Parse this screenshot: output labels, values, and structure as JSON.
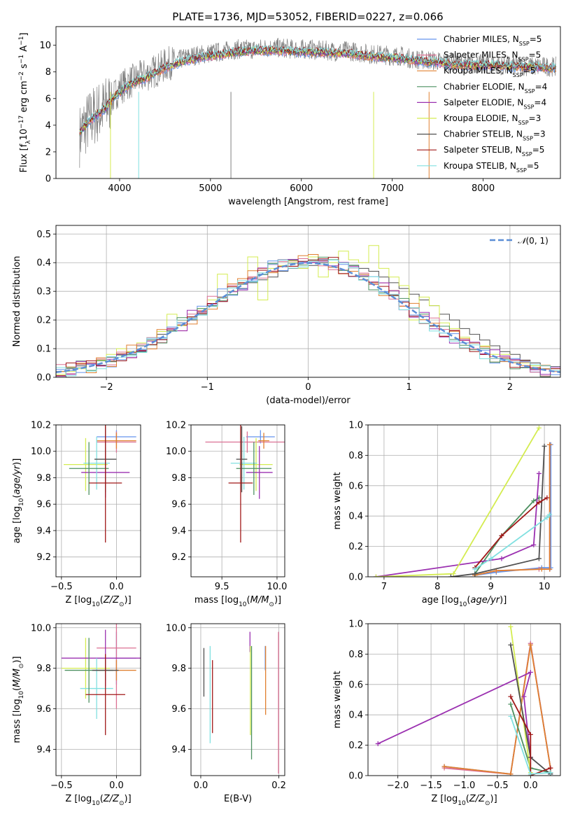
{
  "title": "PLATE=1736, MJD=53052, FIBERID=0227, z=0.066",
  "legend_spectra": [
    {
      "name": "Chabrier MILES",
      "nssp": "5",
      "color": "#6495ed"
    },
    {
      "name": "Salpeter MILES",
      "nssp": "5",
      "color": "#db7093"
    },
    {
      "name": "Kroupa MILES",
      "nssp": "5",
      "color": "#e08030"
    },
    {
      "name": "Chabrier ELODIE",
      "nssp": "4",
      "color": "#4c9060"
    },
    {
      "name": "Salpeter ELODIE",
      "nssp": "4",
      "color": "#9b30b0"
    },
    {
      "name": "Kroupa ELODIE",
      "nssp": "3",
      "color": "#d4ec50"
    },
    {
      "name": "Chabrier STELIB",
      "nssp": "3",
      "color": "#505050"
    },
    {
      "name": "Salpeter STELIB",
      "nssp": "5",
      "color": "#a01818"
    },
    {
      "name": "Kroupa STELIB",
      "nssp": "5",
      "color": "#80e0e0"
    }
  ],
  "chart_data": [
    {
      "id": "spectrum",
      "type": "line",
      "xlabel": "wavelength [Angstrom, rest frame]",
      "ylabel": "Flux [f_λ10^-17 erg cm^-2 s^-1 A^-1]",
      "xlim": [
        3300,
        8850
      ],
      "ylim": [
        0,
        11.4
      ],
      "xticks": [
        4000,
        5000,
        6000,
        7000,
        8000
      ],
      "yticks": [
        0,
        2,
        4,
        6,
        8,
        10
      ],
      "grid": false,
      "legend_placement": "top-right",
      "data_series": {
        "name": "",
        "color": "#808080",
        "x": [
          3560,
          3600,
          3650,
          3700,
          3750,
          3800,
          3850,
          3900,
          3950,
          4000,
          4100,
          4200,
          4300,
          4400,
          4500,
          4600,
          4700,
          4800,
          4900,
          5000,
          5100,
          5200,
          5300,
          5400,
          5500,
          5600,
          5700,
          5800,
          5900,
          6000,
          6100,
          6200,
          6300,
          6400,
          6500,
          6600,
          6700,
          6800,
          6900,
          7000,
          7100,
          7200,
          7300,
          7400,
          7500,
          7600,
          7700,
          7800,
          7900,
          8000,
          8100,
          8200,
          8300,
          8400,
          8500,
          8600,
          8700,
          8800
        ],
        "y": [
          3.2,
          3.8,
          4.2,
          4.6,
          4.9,
          5.1,
          5.4,
          5.8,
          6.3,
          6.8,
          7.2,
          7.5,
          7.8,
          8.1,
          8.5,
          8.8,
          9.0,
          9.2,
          9.3,
          9.4,
          9.5,
          9.6,
          9.7,
          9.7,
          9.7,
          9.8,
          9.8,
          9.8,
          9.7,
          9.7,
          9.7,
          9.6,
          9.6,
          9.5,
          9.6,
          9.5,
          9.4,
          9.3,
          9.3,
          9.2,
          9.2,
          9.0,
          8.9,
          8.9,
          8.8,
          8.7,
          8.7,
          8.6,
          8.6,
          8.6,
          8.6,
          8.5,
          8.5,
          8.5,
          8.4,
          8.4,
          8.4,
          8.4
        ]
      },
      "model_series": {
        "name": "Kroupa STELIB",
        "color": "#80e0e0",
        "x": [
          3560,
          3650,
          3750,
          3850,
          3950,
          4100,
          4300,
          4500,
          4700,
          4900,
          5100,
          5300,
          5500,
          5700,
          5900,
          6100,
          6300,
          6500,
          6700,
          6900,
          7100,
          7300,
          7500,
          7700,
          7900,
          8100,
          8300,
          8500,
          8700,
          8800
        ],
        "y": [
          3.4,
          4.2,
          4.8,
          5.3,
          6.2,
          7.0,
          7.6,
          8.3,
          8.8,
          9.1,
          9.3,
          9.5,
          9.6,
          9.6,
          9.5,
          9.5,
          9.4,
          9.4,
          9.2,
          9.1,
          9.0,
          8.8,
          8.7,
          8.5,
          8.5,
          8.5,
          8.4,
          8.4,
          8.3,
          8.3
        ]
      }
    },
    {
      "id": "residual-histogram",
      "type": "histogram",
      "xlabel": "(data-model)/error",
      "ylabel": "Normed distribution",
      "xlim": [
        -2.5,
        2.5
      ],
      "ylim": [
        0,
        0.53
      ],
      "xticks": [
        -2,
        -1,
        0,
        1,
        2
      ],
      "yticks": [
        0.0,
        0.1,
        0.2,
        0.3,
        0.4,
        0.5
      ],
      "grid": true,
      "legend": "N(0,1)",
      "gaussian": {
        "mu": 0,
        "sigma": 1,
        "color": "#5b8ed6"
      },
      "bin_width": 0.1,
      "series": [
        {
          "name": "Chabrier STELIB",
          "color": "#505050",
          "values": [
            0.02,
            0.03,
            0.04,
            0.05,
            0.06,
            0.07,
            0.08,
            0.09,
            0.11,
            0.13,
            0.15,
            0.17,
            0.19,
            0.2,
            0.22,
            0.25,
            0.28,
            0.3,
            0.31,
            0.33,
            0.34,
            0.35,
            0.37,
            0.38,
            0.38,
            0.39,
            0.4,
            0.41,
            0.4,
            0.39,
            0.38,
            0.37,
            0.35,
            0.33,
            0.31,
            0.29,
            0.27,
            0.25,
            0.22,
            0.2,
            0.17,
            0.15,
            0.13,
            0.11,
            0.09,
            0.08,
            0.06,
            0.05,
            0.04,
            0.03
          ]
        },
        {
          "name": "Kroupa ELODIE",
          "color": "#d4ec50",
          "values": [
            0.01,
            0.02,
            0.03,
            0.05,
            0.06,
            0.08,
            0.1,
            0.09,
            0.12,
            0.13,
            0.16,
            0.22,
            0.18,
            0.21,
            0.24,
            0.27,
            0.36,
            0.3,
            0.33,
            0.42,
            0.27,
            0.38,
            0.39,
            0.4,
            0.38,
            0.42,
            0.35,
            0.4,
            0.44,
            0.41,
            0.4,
            0.46,
            0.38,
            0.35,
            0.32,
            0.2,
            0.28,
            0.25,
            0.19,
            0.17,
            0.14,
            0.12,
            0.11,
            0.08,
            0.08,
            0.06,
            0.05,
            0.04,
            0.03,
            0.02
          ]
        }
      ]
    },
    {
      "id": "age-vs-Z",
      "type": "scatter",
      "xlabel": "Z [log10(Z/Z⊙)]",
      "ylabel": "age  [log10(age/yr)]",
      "xlim": [
        -0.55,
        0.22
      ],
      "ylim": [
        9.05,
        10.2
      ],
      "xticks": [
        -0.5,
        0.0
      ],
      "yticks": [
        9.2,
        9.4,
        9.6,
        9.8,
        10.0,
        10.2
      ],
      "grid": true,
      "points": [
        {
          "x": 0.0,
          "y": 10.11,
          "xerr": 0.18,
          "yerr": 0.05,
          "color": "#6495ed"
        },
        {
          "x": 0.0,
          "y": 10.07,
          "xerr": 0.18,
          "yerr": 0.08,
          "color": "#db7093"
        },
        {
          "x": 0.0,
          "y": 10.08,
          "xerr": 0.18,
          "yerr": 0.06,
          "color": "#e08030"
        },
        {
          "x": -0.28,
          "y": 9.9,
          "xerr": 0.2,
          "yerr": 0.2,
          "color": "#d4ec50"
        },
        {
          "x": -0.1,
          "y": 9.84,
          "xerr": 0.22,
          "yerr": 0.19,
          "color": "#9b30b0"
        },
        {
          "x": -0.18,
          "y": 9.91,
          "xerr": 0.12,
          "yerr": 0.2,
          "color": "#80e0e0"
        },
        {
          "x": -0.25,
          "y": 9.87,
          "xerr": 0.18,
          "yerr": 0.2,
          "color": "#4c9060"
        },
        {
          "x": -0.1,
          "y": 9.94,
          "xerr": 0.1,
          "yerr": 0.25,
          "color": "#505050"
        },
        {
          "x": -0.1,
          "y": 9.76,
          "xerr": 0.15,
          "yerr": 0.45,
          "color": "#a01818"
        }
      ]
    },
    {
      "id": "age-vs-mass",
      "type": "scatter",
      "xlabel": "mass [log10(M/M⊙)]",
      "ylabel": "",
      "xlim": [
        9.22,
        10.07
      ],
      "ylim": [
        9.05,
        10.2
      ],
      "xticks": [
        9.5,
        10.0
      ],
      "yticks": [
        9.2,
        9.4,
        9.6,
        9.8,
        10.0,
        10.2
      ],
      "grid": true,
      "points": [
        {
          "x": 9.85,
          "y": 10.11,
          "xerr": 0.13,
          "yerr": 0.05,
          "color": "#6495ed"
        },
        {
          "x": 9.73,
          "y": 10.07,
          "xerr": 0.38,
          "yerr": 0.08,
          "color": "#db7093"
        },
        {
          "x": 9.88,
          "y": 10.08,
          "xerr": 0.05,
          "yerr": 0.06,
          "color": "#e08030"
        },
        {
          "x": 9.81,
          "y": 9.9,
          "xerr": 0.15,
          "yerr": 0.2,
          "color": "#d4ec50"
        },
        {
          "x": 9.84,
          "y": 9.84,
          "xerr": 0.12,
          "yerr": 0.2,
          "color": "#9b30b0"
        },
        {
          "x": 9.7,
          "y": 9.91,
          "xerr": 0.12,
          "yerr": 0.2,
          "color": "#80e0e0"
        },
        {
          "x": 9.79,
          "y": 9.87,
          "xerr": 0.16,
          "yerr": 0.2,
          "color": "#4c9060"
        },
        {
          "x": 9.68,
          "y": 9.94,
          "xerr": 0.05,
          "yerr": 0.25,
          "color": "#505050"
        },
        {
          "x": 9.67,
          "y": 9.76,
          "xerr": 0.11,
          "yerr": 0.45,
          "color": "#a01818"
        }
      ]
    },
    {
      "id": "mass-weight-vs-age",
      "type": "line",
      "xlabel": "age  [log10(age/yr)]",
      "ylabel": "mass weight",
      "xlim": [
        6.7,
        10.3
      ],
      "ylim": [
        0,
        1.0
      ],
      "xticks": [
        7,
        8,
        9,
        10
      ],
      "yticks": [
        0.0,
        0.2,
        0.4,
        0.6,
        0.8,
        1.0
      ],
      "grid": true,
      "series": [
        {
          "name": "Chabrier MILES",
          "color": "#6495ed",
          "x": [
            8.7,
            9.1,
            9.95,
            10.12,
            10.12
          ],
          "y": [
            0.01,
            0.03,
            0.06,
            0.06,
            0.87
          ]
        },
        {
          "name": "Salpeter MILES",
          "color": "#db7093",
          "x": [
            8.7,
            9.1,
            9.9,
            10.1,
            10.1
          ],
          "y": [
            0.01,
            0.04,
            0.05,
            0.05,
            0.87
          ]
        },
        {
          "name": "Kroupa MILES",
          "color": "#e08030",
          "x": [
            8.7,
            9.1,
            9.95,
            10.1,
            10.1
          ],
          "y": [
            0.01,
            0.04,
            0.05,
            0.05,
            0.87
          ]
        },
        {
          "name": "Chabrier ELODIE",
          "color": "#4c9060",
          "x": [
            8.7,
            9.2,
            9.8,
            9.9
          ],
          "y": [
            0.02,
            0.27,
            0.5,
            0.52
          ]
        },
        {
          "name": "Salpeter ELODIE",
          "color": "#9b30b0",
          "x": [
            6.85,
            9.2,
            9.8,
            9.9
          ],
          "y": [
            0.0,
            0.12,
            0.21,
            0.68
          ]
        },
        {
          "name": "Kroupa ELODIE",
          "color": "#d4ec50",
          "x": [
            6.85,
            8.3,
            9.9
          ],
          "y": [
            0.0,
            0.02,
            0.98
          ]
        },
        {
          "name": "Chabrier STELIB",
          "color": "#505050",
          "x": [
            8.25,
            8.7,
            9.9,
            10.0
          ],
          "y": [
            0.0,
            0.02,
            0.12,
            0.86
          ]
        },
        {
          "name": "Salpeter STELIB",
          "color": "#a01818",
          "x": [
            8.7,
            9.2,
            9.9,
            10.05
          ],
          "y": [
            0.06,
            0.27,
            0.49,
            0.52
          ]
        },
        {
          "name": "Kroupa STELIB",
          "color": "#80e0e0",
          "x": [
            8.7,
            9.0,
            10.05,
            10.1
          ],
          "y": [
            0.05,
            0.12,
            0.39,
            0.41
          ]
        }
      ]
    },
    {
      "id": "mass-vs-Z",
      "type": "scatter",
      "xlabel": "Z [log10(Z/Z⊙)]",
      "ylabel": "mass [log10(M/M⊙)]",
      "xlim": [
        -0.55,
        0.22
      ],
      "ylim": [
        9.27,
        10.02
      ],
      "xticks": [
        -0.5,
        0.0
      ],
      "yticks": [
        9.4,
        9.6,
        9.8,
        10.0
      ],
      "grid": true,
      "points": [
        {
          "x": 0.0,
          "y": 9.85,
          "xerr": 0.18,
          "yerr": 0.13,
          "color": "#6495ed"
        },
        {
          "x": 0.0,
          "y": 9.9,
          "xerr": 0.18,
          "yerr": 0.3,
          "color": "#db7093"
        },
        {
          "x": 0.0,
          "y": 9.79,
          "xerr": 0.18,
          "yerr": 0.05,
          "color": "#e08030"
        },
        {
          "x": -0.28,
          "y": 9.8,
          "xerr": 0.22,
          "yerr": 0.15,
          "color": "#d4ec50"
        },
        {
          "x": -0.1,
          "y": 9.85,
          "xerr": 0.4,
          "yerr": 0.14,
          "color": "#9b30b0"
        },
        {
          "x": -0.18,
          "y": 9.7,
          "xerr": 0.15,
          "yerr": 0.15,
          "color": "#80e0e0"
        },
        {
          "x": -0.25,
          "y": 9.79,
          "xerr": 0.22,
          "yerr": 0.16,
          "color": "#4c9060"
        },
        {
          "x": -0.1,
          "y": 9.79,
          "xerr": 0.12,
          "yerr": 0.05,
          "color": "#505050"
        },
        {
          "x": -0.1,
          "y": 9.67,
          "xerr": 0.18,
          "yerr": 0.2,
          "color": "#a01818"
        }
      ]
    },
    {
      "id": "mass-vs-EBV",
      "type": "errorbar",
      "xlabel": "E(B-V)",
      "ylabel": "",
      "xlim": [
        -0.025,
        0.215
      ],
      "ylim": [
        9.27,
        10.02
      ],
      "xticks": [
        0.0,
        0.2
      ],
      "yticks": [
        9.4,
        9.6,
        9.8,
        10.0
      ],
      "grid": true,
      "points": [
        {
          "x": 0.008,
          "y": 9.78,
          "yerr": 0.12,
          "color": "#505050"
        },
        {
          "x": 0.024,
          "y": 9.67,
          "yerr": 0.24,
          "color": "#80e0e0"
        },
        {
          "x": 0.03,
          "y": 9.66,
          "yerr": 0.18,
          "color": "#a01818"
        },
        {
          "x": 0.126,
          "y": 9.93,
          "yerr": 0.05,
          "color": "#9b30b0"
        },
        {
          "x": 0.127,
          "y": 9.69,
          "yerr": 0.22,
          "color": "#d4ec50"
        },
        {
          "x": 0.13,
          "y": 9.63,
          "yerr": 0.28,
          "color": "#4c9060"
        },
        {
          "x": 0.165,
          "y": 9.85,
          "yerr": 0.06,
          "color": "#6495ed"
        },
        {
          "x": 0.166,
          "y": 9.74,
          "yerr": 0.17,
          "color": "#e08030"
        },
        {
          "x": 0.199,
          "y": 9.63,
          "yerr": 0.35,
          "color": "#db7093"
        }
      ]
    },
    {
      "id": "mass-weight-vs-Z",
      "type": "line",
      "xlabel": "Z [log10(Z/Z⊙)]",
      "ylabel": "mass weight",
      "xlim": [
        -2.45,
        0.45
      ],
      "ylim": [
        0,
        1.0
      ],
      "xticks": [
        -2.0,
        -1.5,
        -1.0,
        -0.5,
        0.0
      ],
      "yticks": [
        0.0,
        0.2,
        0.4,
        0.6,
        0.8,
        1.0
      ],
      "grid": true,
      "series": [
        {
          "name": "Chabrier MILES",
          "color": "#6495ed",
          "x": [
            -1.3,
            -0.3,
            0.0,
            0.3,
            0.3
          ],
          "y": [
            0.06,
            0.01,
            0.87,
            0.05,
            0.01
          ]
        },
        {
          "name": "Salpeter MILES",
          "color": "#db7093",
          "x": [
            -1.3,
            -0.3,
            0.0,
            0.3,
            0.3
          ],
          "y": [
            0.05,
            0.01,
            0.87,
            0.05,
            0.02
          ]
        },
        {
          "name": "Kroupa MILES",
          "color": "#e08030",
          "x": [
            -1.3,
            -0.3,
            0.0,
            0.3,
            0.3
          ],
          "y": [
            0.06,
            0.01,
            0.86,
            0.05,
            0.02
          ]
        },
        {
          "name": "Chabrier ELODIE",
          "color": "#4c9060",
          "x": [
            -0.3,
            0.0,
            0.3
          ],
          "y": [
            0.47,
            0.05,
            0.02
          ]
        },
        {
          "name": "Salpeter ELODIE",
          "color": "#9b30b0",
          "x": [
            -2.3,
            0.0,
            -0.1,
            0.0
          ],
          "y": [
            0.21,
            0.68,
            0.52,
            0.12
          ]
        },
        {
          "name": "Kroupa ELODIE",
          "color": "#d4ec50",
          "x": [
            -0.3,
            0.0,
            0.0
          ],
          "y": [
            0.98,
            0.02,
            0.0
          ]
        },
        {
          "name": "Chabrier STELIB",
          "color": "#505050",
          "x": [
            -0.3,
            0.0,
            0.3
          ],
          "y": [
            0.86,
            0.12,
            0.01
          ]
        },
        {
          "name": "Salpeter STELIB",
          "color": "#a01818",
          "x": [
            -0.3,
            0.0,
            0.0,
            0.3
          ],
          "y": [
            0.52,
            0.27,
            0.0,
            0.05
          ]
        },
        {
          "name": "Kroupa STELIB",
          "color": "#80e0e0",
          "x": [
            -0.3,
            0.0,
            0.3
          ],
          "y": [
            0.39,
            0.01,
            0.02
          ]
        }
      ]
    }
  ]
}
